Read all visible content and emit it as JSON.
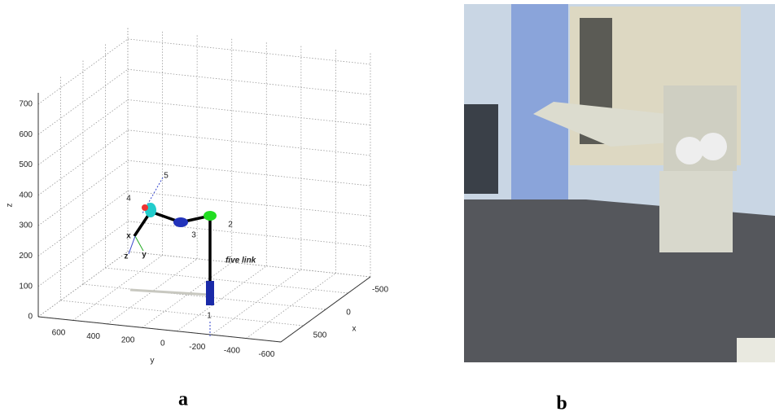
{
  "panel_a": {
    "z_ticks": [
      0,
      100,
      200,
      300,
      400,
      500,
      600,
      700
    ],
    "y_ticks": [
      600,
      400,
      200,
      0,
      -200,
      -400,
      -600
    ],
    "x_ticks": [
      -500,
      0,
      500
    ],
    "z_label": "z",
    "y_label": "y",
    "x_label": "x",
    "joint_labels": [
      "1",
      "2",
      "3",
      "4",
      "5"
    ],
    "frame_labels": [
      "x",
      "y",
      "z"
    ],
    "annotation": "five link",
    "caption": "a"
  },
  "panel_b": {
    "caption": "b"
  }
}
